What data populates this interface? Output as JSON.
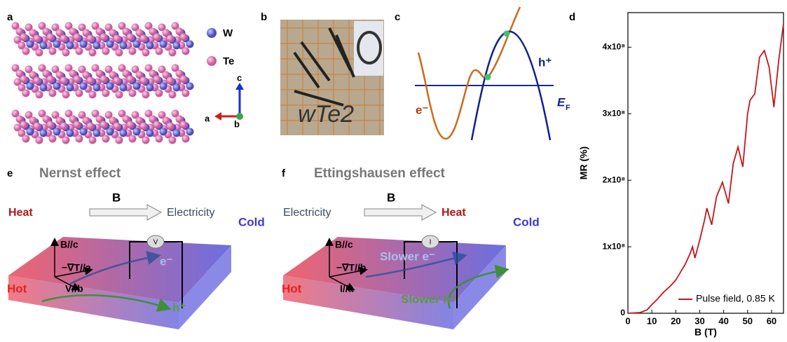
{
  "panels": {
    "a": {
      "label": "a",
      "legend": [
        "W",
        "Te"
      ],
      "axes": [
        "c",
        "a",
        "b"
      ]
    },
    "b": {
      "label": "b",
      "handwriting": "wTe2"
    },
    "c": {
      "label": "c",
      "hole": "h⁺",
      "electron": "e⁻",
      "fermi": "E",
      "fermi_sub": "F"
    },
    "e": {
      "label": "e",
      "title": "Nernst effect",
      "field": "B",
      "from": "Heat",
      "to": "Electricity",
      "bc": "B//c",
      "grad": "−∇T//a",
      "probe": "V//b",
      "carrier1": "e⁻",
      "cold": "Cold",
      "hot": "Hot",
      "carrier2": "h⁺",
      "meter": "V"
    },
    "f": {
      "label": "f",
      "title": "Ettingshausen effect",
      "field": "B",
      "from": "Electricity",
      "to": "Heat",
      "bc": "B//c",
      "grad": "−∇T//b",
      "probe": "I//a",
      "carrier1": "Slower e⁻",
      "cold": "Cold",
      "hot": "Hot",
      "carrier2": "Slower h⁺",
      "meter": "I"
    },
    "d": {
      "label": "d"
    }
  },
  "chart_data": {
    "type": "line",
    "x_label": "B (T)",
    "y_label": "MR (%)",
    "xlim": [
      0,
      65
    ],
    "ylim": [
      0,
      452000000
    ],
    "xticks": [
      0,
      10,
      20,
      30,
      40,
      50,
      60
    ],
    "yticks": [
      0,
      {
        "value": 100000000,
        "label": "1x10⁸"
      },
      {
        "value": 200000000,
        "label": "2x10⁸"
      },
      {
        "value": 300000000,
        "label": "3x10⁸"
      },
      {
        "value": 400000000,
        "label": "4x10⁸"
      }
    ],
    "legend_position": "lower right",
    "series": [
      {
        "name": "Pulse field, 0.85 K",
        "color": "#c0171c",
        "x": [
          0,
          5,
          8,
          10,
          12,
          15,
          18,
          20,
          22,
          24,
          26,
          27,
          28,
          30,
          32,
          33,
          35,
          37,
          39.5,
          42,
          44,
          46,
          48,
          50,
          51,
          53,
          55,
          57,
          59,
          61,
          63,
          65
        ],
        "values": [
          0,
          1000000,
          5000000,
          13000000,
          20000000,
          32000000,
          42000000,
          50000000,
          62000000,
          74000000,
          90000000,
          100000000,
          83000000,
          110000000,
          140000000,
          158000000,
          133000000,
          175000000,
          197000000,
          165000000,
          225000000,
          250000000,
          220000000,
          300000000,
          320000000,
          330000000,
          385000000,
          395000000,
          370000000,
          310000000,
          380000000,
          435000000
        ]
      }
    ]
  }
}
